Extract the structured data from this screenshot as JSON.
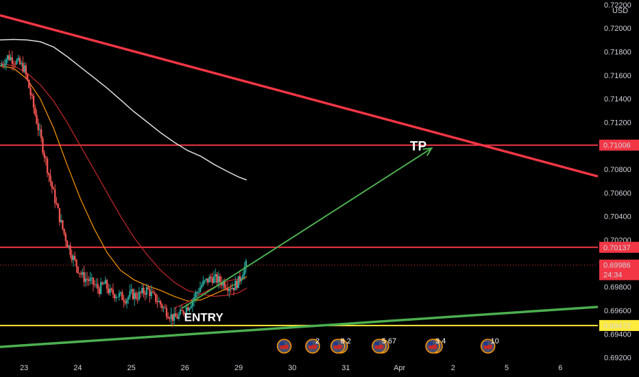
{
  "chart_data": {
    "type": "candlestick",
    "currency": "USD",
    "y_axis_ticks": [
      "0.72200",
      "0.72000",
      "0.71800",
      "0.71600",
      "0.71400",
      "0.71200",
      "0.70800",
      "0.70600",
      "0.70400",
      "0.70200",
      "0.69800",
      "0.69600",
      "0.69400",
      "0.69200"
    ],
    "ylim": [
      0.6918,
      0.7224
    ],
    "x_axis_ticks": [
      {
        "label": "23",
        "x": 0
      },
      {
        "label": "24",
        "x": 1
      },
      {
        "label": "25",
        "x": 2
      },
      {
        "label": "26",
        "x": 3
      },
      {
        "label": "29",
        "x": 4
      },
      {
        "label": "30",
        "x": 5
      },
      {
        "label": "31",
        "x": 6
      },
      {
        "label": "Apr",
        "x": 7
      },
      {
        "label": "2",
        "x": 8
      },
      {
        "label": "5",
        "x": 9
      },
      {
        "label": "6",
        "x": 10
      }
    ],
    "xlim": [
      -0.45,
      10.7
    ],
    "price_levels": [
      {
        "value": 0.71006,
        "label": "0.71006",
        "color": "#f23645"
      },
      {
        "value": 0.70137,
        "label": "0.70137",
        "color": "#f23645"
      },
      {
        "value": 0.69472,
        "label": "0.69472",
        "color": "#ffeb3b"
      }
    ],
    "current_price": {
      "label": "0.69986",
      "countdown": "24:34",
      "value": 0.69986,
      "color": "#f23645"
    },
    "trendlines": [
      {
        "name": "descending-resistance",
        "color": "#f23645",
        "points": [
          [
            -0.45,
            0.7211
          ],
          [
            10.7,
            0.7074
          ]
        ]
      },
      {
        "name": "ascending-support",
        "color": "#4caf50",
        "points": [
          [
            -0.45,
            0.6929
          ],
          [
            10.7,
            0.6963
          ]
        ]
      }
    ],
    "projection": {
      "color": "#4caf50",
      "from": [
        2.95,
        0.6962
      ],
      "to": [
        7.6,
        0.7098
      ]
    },
    "annotations": [
      {
        "text": "TP",
        "x": 7.35,
        "y": 0.7096
      },
      {
        "text": "ENTRY",
        "x": 3.35,
        "y": 0.6951
      }
    ],
    "moving_averages": [
      {
        "name": "ma-long",
        "color": "#e0e0e0",
        "points": [
          [
            -0.45,
            0.719
          ],
          [
            -0.2,
            0.71905
          ],
          [
            0.05,
            0.719
          ],
          [
            0.3,
            0.71885
          ],
          [
            0.55,
            0.7184
          ],
          [
            0.8,
            0.7176
          ],
          [
            1.05,
            0.7167
          ],
          [
            1.3,
            0.7158
          ],
          [
            1.55,
            0.7149
          ],
          [
            1.8,
            0.7139
          ],
          [
            2.05,
            0.7129
          ],
          [
            2.3,
            0.712
          ],
          [
            2.55,
            0.7111
          ],
          [
            2.8,
            0.7103
          ],
          [
            3.05,
            0.7096
          ],
          [
            3.3,
            0.7091
          ],
          [
            3.55,
            0.7084
          ],
          [
            3.8,
            0.7078
          ],
          [
            4.0,
            0.70735
          ],
          [
            4.15,
            0.7071
          ]
        ]
      },
      {
        "name": "ma-mid",
        "color": "#c62828",
        "points": [
          [
            -0.45,
            0.717
          ],
          [
            -0.2,
            0.7168
          ],
          [
            0.05,
            0.7162
          ],
          [
            0.3,
            0.7152
          ],
          [
            0.55,
            0.7138
          ],
          [
            0.8,
            0.712
          ],
          [
            1.05,
            0.71
          ],
          [
            1.3,
            0.708
          ],
          [
            1.55,
            0.706
          ],
          [
            1.8,
            0.704
          ],
          [
            2.05,
            0.7022
          ],
          [
            2.3,
            0.7007
          ],
          [
            2.55,
            0.6994
          ],
          [
            2.8,
            0.6984
          ],
          [
            3.05,
            0.6977
          ],
          [
            3.3,
            0.6974
          ],
          [
            3.55,
            0.6972
          ],
          [
            3.8,
            0.6973
          ],
          [
            4.0,
            0.6975
          ],
          [
            4.15,
            0.6979
          ]
        ]
      },
      {
        "name": "ma-short",
        "color": "#ff9800",
        "points": [
          [
            -0.45,
            0.7168
          ],
          [
            -0.2,
            0.7166
          ],
          [
            0.05,
            0.7157
          ],
          [
            0.3,
            0.714
          ],
          [
            0.55,
            0.7115
          ],
          [
            0.8,
            0.7084
          ],
          [
            1.05,
            0.7055
          ],
          [
            1.3,
            0.703
          ],
          [
            1.55,
            0.7009
          ],
          [
            1.8,
            0.6994
          ],
          [
            2.05,
            0.6986
          ],
          [
            2.3,
            0.6981
          ],
          [
            2.55,
            0.6977
          ],
          [
            2.8,
            0.6972
          ],
          [
            3.05,
            0.6968
          ],
          [
            3.3,
            0.6969
          ],
          [
            3.55,
            0.6974
          ],
          [
            3.8,
            0.6979
          ],
          [
            4.0,
            0.6984
          ],
          [
            4.15,
            0.6989
          ]
        ]
      },
      {
        "name": "ma-fast",
        "color": "#c62828",
        "points": [
          [
            2.8,
            0.6962
          ],
          [
            3.05,
            0.6967
          ],
          [
            3.3,
            0.6974
          ],
          [
            3.55,
            0.698
          ],
          [
            3.8,
            0.6985
          ],
          [
            4.0,
            0.6987
          ],
          [
            4.15,
            0.6988
          ]
        ]
      }
    ],
    "candles_anchor": [
      [
        -0.45,
        0.7168
      ],
      [
        -0.3,
        0.7176
      ],
      [
        -0.15,
        0.7172
      ],
      [
        0.0,
        0.7166
      ],
      [
        0.1,
        0.7148
      ],
      [
        0.2,
        0.7128
      ],
      [
        0.3,
        0.7108
      ],
      [
        0.4,
        0.7088
      ],
      [
        0.5,
        0.7068
      ],
      [
        0.6,
        0.705
      ],
      [
        0.7,
        0.7032
      ],
      [
        0.8,
        0.7018
      ],
      [
        0.9,
        0.7006
      ],
      [
        1.0,
        0.6996
      ],
      [
        1.1,
        0.6988
      ],
      [
        1.2,
        0.6986
      ],
      [
        1.3,
        0.6982
      ],
      [
        1.4,
        0.6978
      ],
      [
        1.5,
        0.6983
      ],
      [
        1.6,
        0.6975
      ],
      [
        1.7,
        0.6974
      ],
      [
        1.8,
        0.6972
      ],
      [
        1.9,
        0.697
      ],
      [
        2.0,
        0.6974
      ],
      [
        2.1,
        0.6972
      ],
      [
        2.2,
        0.6975
      ],
      [
        2.3,
        0.6978
      ],
      [
        2.4,
        0.6972
      ],
      [
        2.5,
        0.6968
      ],
      [
        2.6,
        0.6962
      ],
      [
        2.7,
        0.6957
      ],
      [
        2.8,
        0.6953
      ],
      [
        2.9,
        0.6956
      ],
      [
        3.0,
        0.6961
      ],
      [
        3.1,
        0.6966
      ],
      [
        3.2,
        0.6974
      ],
      [
        3.3,
        0.6981
      ],
      [
        3.4,
        0.6985
      ],
      [
        3.5,
        0.6988
      ],
      [
        3.6,
        0.6986
      ],
      [
        3.7,
        0.6984
      ],
      [
        3.8,
        0.6981
      ],
      [
        3.9,
        0.698
      ],
      [
        4.0,
        0.6985
      ],
      [
        4.1,
        0.6996
      ],
      [
        4.15,
        0.6999
      ]
    ],
    "event_badges": [
      {
        "x": 4.85,
        "texts": []
      },
      {
        "x": 5.38,
        "texts": [
          "2"
        ]
      },
      {
        "x": 5.85,
        "texts": [
          "8",
          "2"
        ]
      },
      {
        "x": 6.62,
        "texts": [
          "5",
          "67"
        ]
      },
      {
        "x": 7.62,
        "texts": [
          "3",
          "4"
        ]
      },
      {
        "x": 8.65,
        "texts": [
          "10"
        ]
      }
    ]
  }
}
